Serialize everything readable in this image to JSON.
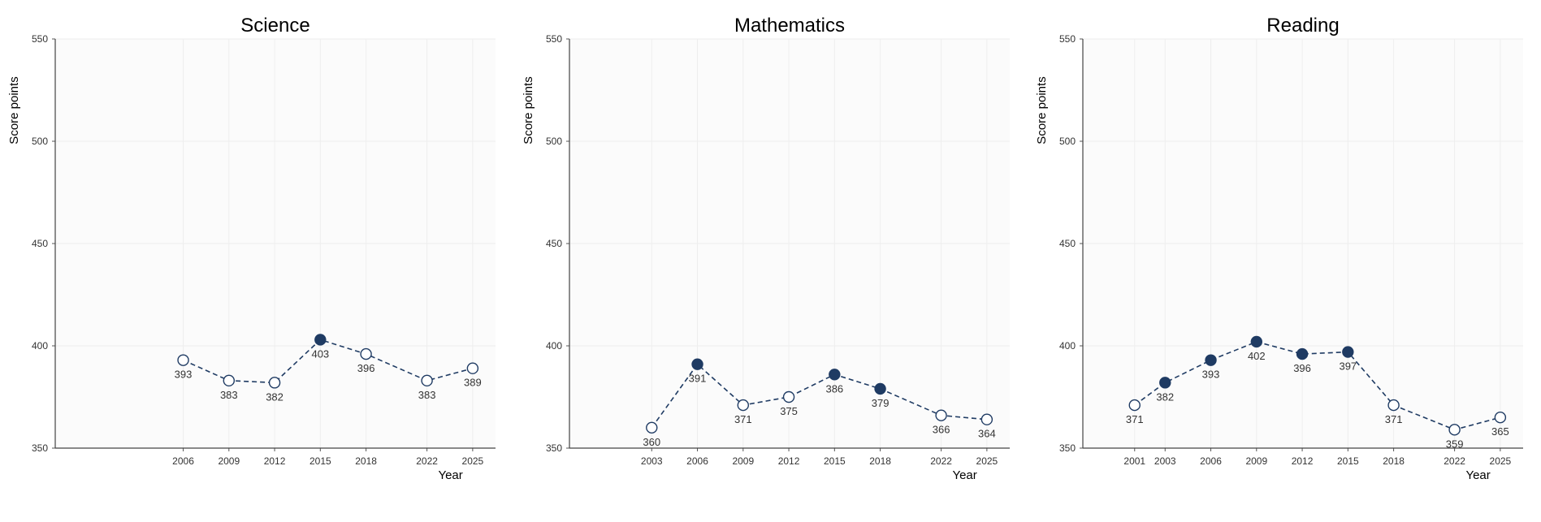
{
  "colors": {
    "series": "#1f3b63",
    "grid": "#eeeeee",
    "plot_bg": "#fbfbfb"
  },
  "chart_data": [
    {
      "type": "line",
      "title": "Science",
      "xlabel": "Year",
      "ylabel": "Score points",
      "ylim": [
        350,
        550
      ],
      "yticks": [
        350,
        400,
        450,
        500,
        550
      ],
      "xlim": [
        1997.6,
        2026.5
      ],
      "grid": true,
      "x": [
        2006,
        2009,
        2012,
        2015,
        2018,
        2022,
        2025
      ],
      "values": [
        393,
        383,
        382,
        403,
        396,
        383,
        389
      ],
      "labels": [
        "393",
        "383",
        "382",
        "403",
        "396",
        "383",
        "389"
      ],
      "filled": [
        false,
        false,
        false,
        true,
        false,
        false,
        false
      ]
    },
    {
      "type": "line",
      "title": "Mathematics",
      "xlabel": "Year",
      "ylabel": "Score points",
      "ylim": [
        350,
        550
      ],
      "yticks": [
        350,
        400,
        450,
        500,
        550
      ],
      "xlim": [
        1997.6,
        2026.5
      ],
      "grid": true,
      "x": [
        2003,
        2006,
        2009,
        2012,
        2015,
        2018,
        2022,
        2025
      ],
      "values": [
        360,
        391,
        371,
        375,
        386,
        379,
        366,
        364
      ],
      "labels": [
        "360",
        "391",
        "371",
        "375",
        "386",
        "379",
        "366",
        "364"
      ],
      "filled": [
        false,
        true,
        false,
        false,
        true,
        true,
        false,
        false
      ]
    },
    {
      "type": "line",
      "title": "Reading",
      "xlabel": "Year",
      "ylabel": "Score points",
      "ylim": [
        350,
        550
      ],
      "yticks": [
        350,
        400,
        450,
        500,
        550
      ],
      "xlim": [
        1997.6,
        2026.5
      ],
      "grid": true,
      "x": [
        2001,
        2003,
        2006,
        2009,
        2012,
        2015,
        2018,
        2022,
        2025
      ],
      "values": [
        371,
        382,
        393,
        402,
        396,
        397,
        371,
        359,
        365
      ],
      "labels": [
        "371",
        "382",
        "393",
        "402",
        "396",
        "397",
        "371",
        "359",
        "365"
      ],
      "filled": [
        false,
        true,
        true,
        true,
        true,
        true,
        false,
        false,
        false
      ]
    }
  ]
}
